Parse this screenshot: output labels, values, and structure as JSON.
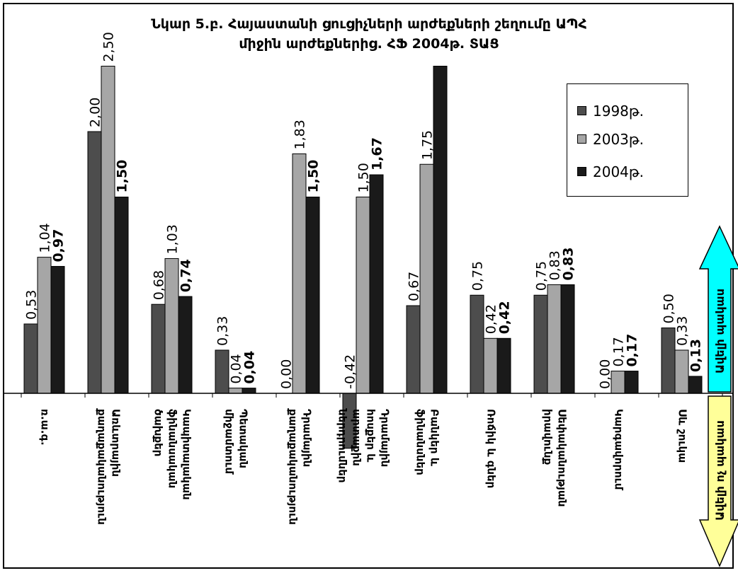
{
  "title": {
    "line1": "Նկար 5.բ. Հայաստանի ցուցիչների արժեքների շեղումը ԱՊՀ",
    "line2": "միջին արժեքներից. ՀՖ 2004թ. ՏԱՑ"
  },
  "colors": {
    "series_1998": "#4d4d4d",
    "series_2003": "#a6a6a6",
    "series_2004": "#1a1a1a",
    "arrow_up": "#00ffff",
    "arrow_down": "#ffff99"
  },
  "legend": {
    "items": [
      {
        "label": "1998թ."
      },
      {
        "label": "2003թ."
      },
      {
        "label": "2004թ."
      }
    ]
  },
  "arrows": {
    "up_label": "Ավելի պակաս",
    "down_label": "Ավելի ոչ պակաս"
  },
  "chart_data": {
    "type": "bar",
    "title": "Նկար 5.բ. Հայաստանի ցուցիչների արժեքների շեղումը ԱՊՀ միջին արժեքներից. ՀՖ 2004թ. ՏԱՑ",
    "categories": [
      "ռ.ա.գ.",
      "Առևտրային քաղաքականություն",
      "Կապիտալական ֆինանսական ծախքեր",
      "Պետական միջամտում",
      "Դրամային քաղաքականություն",
      "Դրամային հոսքեր և արտաքին ներդրումներ",
      "Բանկեր և ֆինանսներ",
      "Ռոճիկ և գներ",
      "Սեփականության իրավունք",
      "Կարգավորում",
      "Սև շուկա"
    ],
    "legend_position": "top-right",
    "grid": false,
    "ylim": [
      -1.0,
      2.5
    ],
    "series": [
      {
        "name": "1998թ.",
        "values": [
          0.53,
          2.0,
          0.68,
          0.33,
          0.0,
          -0.42,
          0.67,
          0.75,
          0.75,
          0.0,
          0.5
        ],
        "labels": [
          "0,53",
          "2,00",
          "0,68",
          "0,33",
          "0,00",
          "-0,42",
          "0,67",
          "0,75",
          "0,75",
          "0,00",
          "0,50"
        ]
      },
      {
        "name": "2003թ.",
        "values": [
          1.04,
          2.5,
          1.03,
          0.04,
          1.83,
          1.5,
          1.75,
          0.42,
          0.83,
          0.17,
          0.33
        ],
        "labels": [
          "1,04",
          "2,50",
          "1,03",
          "0,04",
          "1,83",
          "1,50",
          "1,75",
          "0,42",
          "0,83",
          "0,17",
          "0,33"
        ]
      },
      {
        "name": "2004թ.",
        "values": [
          0.97,
          1.5,
          0.74,
          0.04,
          1.5,
          1.67,
          2.5,
          0.42,
          0.83,
          0.17,
          0.13
        ],
        "labels": [
          "0,97",
          "1,50",
          "0,74",
          "0,04",
          "1,50",
          "1,67",
          "",
          "0,42",
          "0,83",
          "0,17",
          "0,13"
        ]
      }
    ]
  }
}
